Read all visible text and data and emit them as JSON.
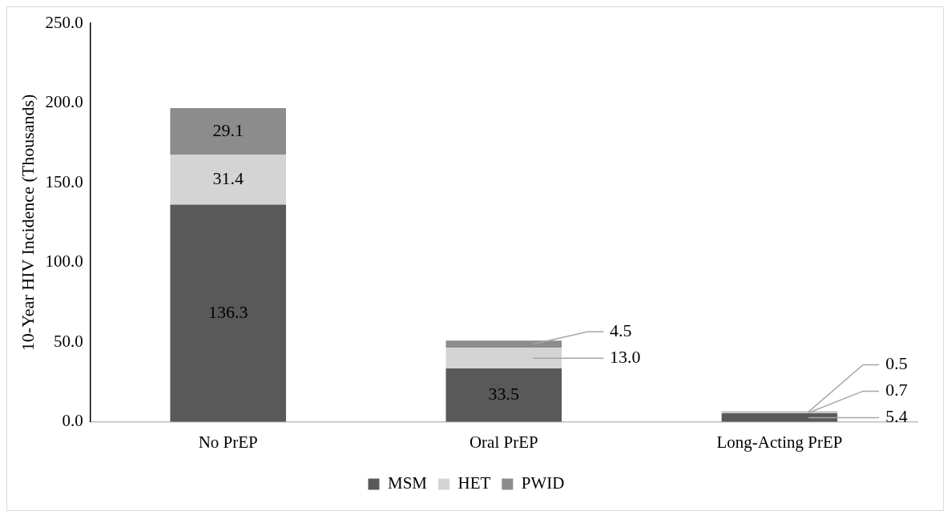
{
  "chart_data": {
    "type": "bar",
    "stacked": true,
    "ylabel": "10-Year HIV Incidence (Thousands)",
    "categories": [
      "No PrEP",
      "Oral PrEP",
      "Long-Acting PrEP"
    ],
    "series": [
      {
        "name": "MSM",
        "color": "#595959",
        "values": [
          136.3,
          33.5,
          5.4
        ],
        "value_labels": [
          "136.3",
          "33.5",
          "5.4"
        ]
      },
      {
        "name": "HET",
        "color": "#d4d4d4",
        "values": [
          31.4,
          13.0,
          0.7
        ],
        "value_labels": [
          "31.4",
          "13.0",
          "0.7"
        ]
      },
      {
        "name": "PWID",
        "color": "#8c8c8c",
        "values": [
          29.1,
          4.5,
          0.5
        ],
        "value_labels": [
          "29.1",
          "4.5",
          "0.5"
        ]
      }
    ],
    "ylim": [
      0,
      250
    ],
    "yticks": [
      {
        "value": 0,
        "label": "0.0"
      },
      {
        "value": 50,
        "label": "50.0"
      },
      {
        "value": 100,
        "label": "100.0"
      },
      {
        "value": 150,
        "label": "150.0"
      },
      {
        "value": 200,
        "label": "200.0"
      },
      {
        "value": 250,
        "label": "250.0"
      }
    ],
    "grid": false,
    "legend": "bottom"
  }
}
